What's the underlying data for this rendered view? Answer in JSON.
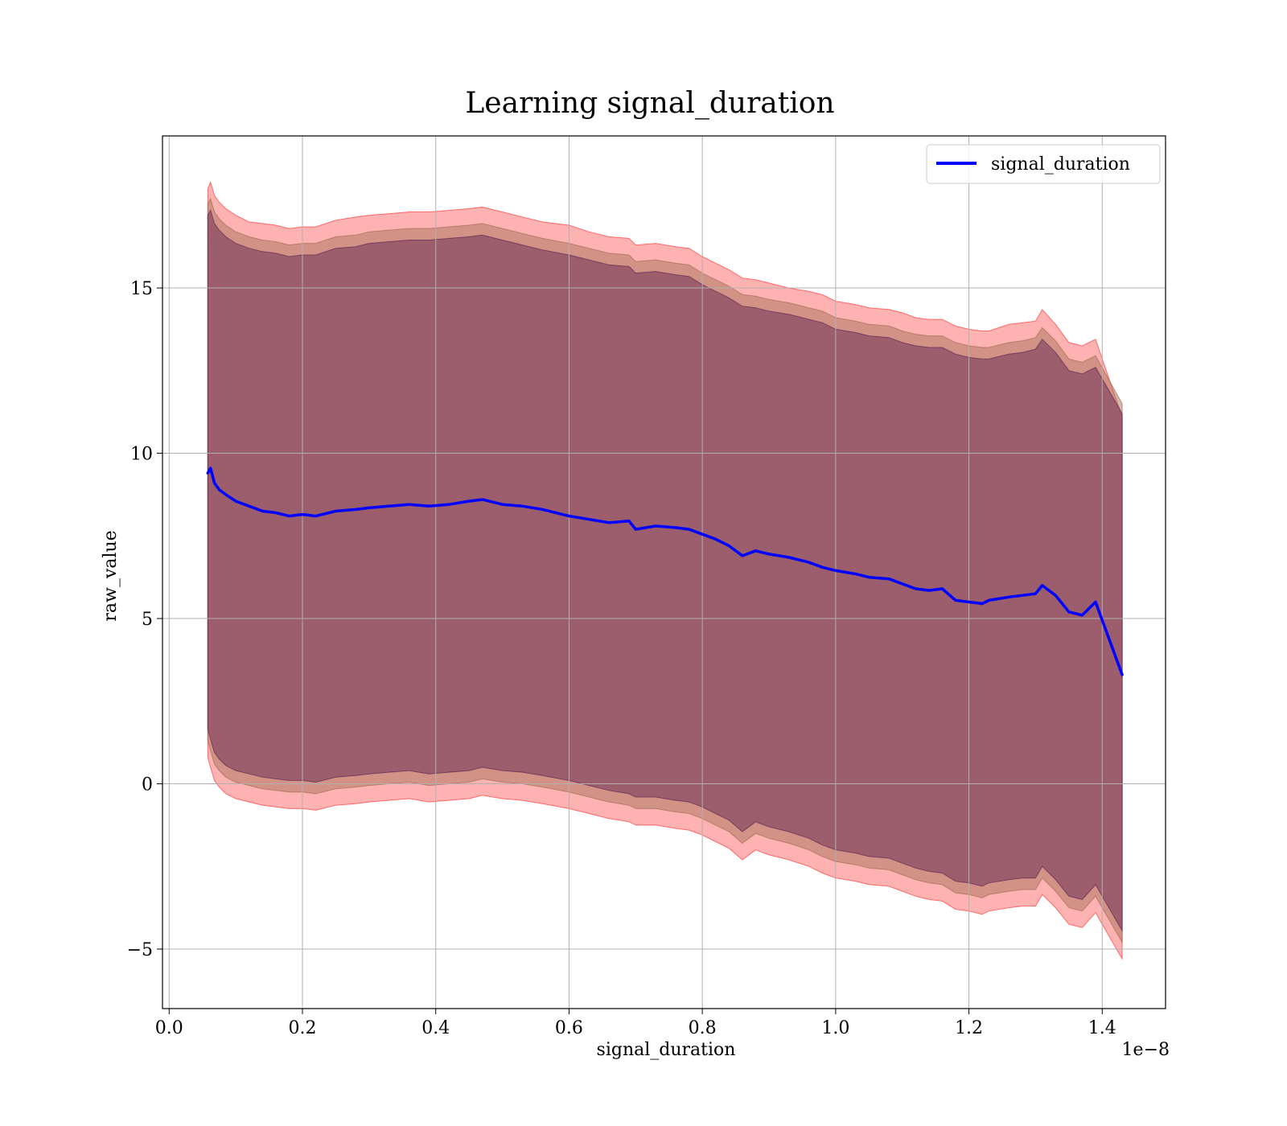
{
  "chart_data": {
    "type": "line",
    "title": "Learning signal_duration",
    "xlabel": "signal_duration",
    "ylabel": "raw_value",
    "x_offset_label": "1e−8",
    "xlim": [
      -0.01,
      1.495
    ],
    "ylim": [
      -6.8,
      19.6
    ],
    "x_ticks": [
      0.0,
      0.2,
      0.4,
      0.6,
      0.8,
      1.0,
      1.2,
      1.4
    ],
    "x_tick_labels": [
      "0.0",
      "0.2",
      "0.4",
      "0.6",
      "0.8",
      "1.0",
      "1.2",
      "1.4"
    ],
    "y_ticks": [
      -5,
      0,
      5,
      10,
      15
    ],
    "y_tick_labels": [
      "−5",
      "0",
      "5",
      "10",
      "15"
    ],
    "grid": true,
    "legend": {
      "position": "top-right",
      "entries": [
        "signal_duration"
      ]
    },
    "series": [
      {
        "name": "signal_duration",
        "color": "#0000ff",
        "x": [
          0.058,
          0.062,
          0.068,
          0.075,
          0.085,
          0.1,
          0.12,
          0.14,
          0.16,
          0.18,
          0.2,
          0.22,
          0.25,
          0.28,
          0.3,
          0.33,
          0.36,
          0.39,
          0.42,
          0.45,
          0.47,
          0.5,
          0.53,
          0.56,
          0.6,
          0.63,
          0.66,
          0.69,
          0.7,
          0.73,
          0.76,
          0.78,
          0.8,
          0.82,
          0.84,
          0.86,
          0.88,
          0.9,
          0.93,
          0.96,
          0.98,
          1.0,
          1.03,
          1.05,
          1.08,
          1.1,
          1.12,
          1.14,
          1.16,
          1.18,
          1.2,
          1.22,
          1.23,
          1.26,
          1.28,
          1.3,
          1.31,
          1.33,
          1.35,
          1.37,
          1.39,
          1.43
        ],
        "values": [
          9.4,
          9.55,
          9.1,
          8.9,
          8.75,
          8.55,
          8.4,
          8.25,
          8.2,
          8.1,
          8.15,
          8.1,
          8.25,
          8.3,
          8.35,
          8.4,
          8.45,
          8.4,
          8.45,
          8.55,
          8.6,
          8.45,
          8.4,
          8.3,
          8.1,
          8.0,
          7.9,
          7.95,
          7.7,
          7.8,
          7.75,
          7.7,
          7.55,
          7.4,
          7.2,
          6.9,
          7.05,
          6.95,
          6.85,
          6.7,
          6.55,
          6.45,
          6.35,
          6.25,
          6.2,
          6.05,
          5.9,
          5.85,
          5.9,
          5.55,
          5.5,
          5.45,
          5.55,
          5.65,
          5.7,
          5.75,
          6.0,
          5.7,
          5.2,
          5.1,
          5.5,
          3.3
        ]
      }
    ],
    "bands": [
      {
        "color": "#ff0000",
        "opacity": 0.3,
        "upper": [
          18.0,
          18.2,
          17.8,
          17.6,
          17.4,
          17.2,
          17.0,
          16.95,
          16.9,
          16.8,
          16.85,
          16.85,
          17.05,
          17.15,
          17.2,
          17.25,
          17.3,
          17.3,
          17.35,
          17.4,
          17.45,
          17.3,
          17.15,
          17.0,
          16.9,
          16.7,
          16.55,
          16.5,
          16.3,
          16.35,
          16.25,
          16.2,
          15.95,
          15.75,
          15.55,
          15.3,
          15.25,
          15.15,
          15.0,
          14.9,
          14.8,
          14.6,
          14.5,
          14.4,
          14.35,
          14.25,
          14.1,
          14.05,
          14.05,
          13.85,
          13.75,
          13.7,
          13.7,
          13.9,
          13.95,
          14.0,
          14.35,
          13.9,
          13.35,
          13.25,
          13.45,
          11.1
        ],
        "lower": [
          0.8,
          0.5,
          0.1,
          -0.1,
          -0.3,
          -0.45,
          -0.55,
          -0.65,
          -0.7,
          -0.75,
          -0.75,
          -0.8,
          -0.65,
          -0.6,
          -0.55,
          -0.5,
          -0.45,
          -0.55,
          -0.5,
          -0.45,
          -0.35,
          -0.45,
          -0.5,
          -0.6,
          -0.75,
          -0.9,
          -1.05,
          -1.15,
          -1.25,
          -1.25,
          -1.35,
          -1.4,
          -1.55,
          -1.75,
          -1.95,
          -2.3,
          -2.0,
          -2.15,
          -2.3,
          -2.5,
          -2.7,
          -2.85,
          -2.95,
          -3.05,
          -3.1,
          -3.25,
          -3.4,
          -3.5,
          -3.55,
          -3.8,
          -3.85,
          -3.95,
          -3.85,
          -3.75,
          -3.7,
          -3.7,
          -3.35,
          -3.75,
          -4.25,
          -4.35,
          -3.9,
          -5.3
        ]
      },
      {
        "color": "#9c6a50",
        "opacity": 0.45,
        "upper": [
          17.55,
          17.7,
          17.3,
          17.1,
          16.9,
          16.7,
          16.55,
          16.45,
          16.4,
          16.3,
          16.35,
          16.35,
          16.55,
          16.6,
          16.7,
          16.75,
          16.8,
          16.8,
          16.85,
          16.9,
          16.95,
          16.8,
          16.65,
          16.5,
          16.35,
          16.2,
          16.05,
          16.0,
          15.8,
          15.85,
          15.75,
          15.7,
          15.45,
          15.25,
          15.05,
          14.8,
          14.75,
          14.65,
          14.55,
          14.4,
          14.3,
          14.1,
          14.0,
          13.9,
          13.85,
          13.7,
          13.6,
          13.55,
          13.55,
          13.35,
          13.25,
          13.2,
          13.2,
          13.35,
          13.4,
          13.5,
          13.8,
          13.4,
          12.85,
          12.75,
          12.95,
          11.5
        ],
        "lower": [
          1.3,
          1.0,
          0.6,
          0.4,
          0.2,
          0.05,
          -0.05,
          -0.15,
          -0.2,
          -0.25,
          -0.25,
          -0.3,
          -0.15,
          -0.1,
          -0.05,
          0.0,
          0.05,
          -0.05,
          0.0,
          0.05,
          0.15,
          0.05,
          0.0,
          -0.1,
          -0.25,
          -0.4,
          -0.55,
          -0.65,
          -0.75,
          -0.75,
          -0.85,
          -0.9,
          -1.05,
          -1.25,
          -1.45,
          -1.8,
          -1.5,
          -1.65,
          -1.8,
          -2.0,
          -2.2,
          -2.35,
          -2.45,
          -2.55,
          -2.6,
          -2.75,
          -2.9,
          -3.0,
          -3.05,
          -3.3,
          -3.35,
          -3.45,
          -3.35,
          -3.25,
          -3.2,
          -3.2,
          -2.85,
          -3.25,
          -3.75,
          -3.85,
          -3.4,
          -4.8
        ]
      },
      {
        "color": "#5a2050",
        "opacity": 0.45,
        "upper": [
          17.2,
          17.35,
          16.95,
          16.75,
          16.55,
          16.35,
          16.2,
          16.1,
          16.05,
          15.95,
          16.0,
          16.0,
          16.2,
          16.25,
          16.35,
          16.4,
          16.45,
          16.45,
          16.5,
          16.55,
          16.6,
          16.45,
          16.3,
          16.15,
          16.0,
          15.85,
          15.7,
          15.65,
          15.45,
          15.5,
          15.4,
          15.35,
          15.1,
          14.9,
          14.7,
          14.45,
          14.4,
          14.3,
          14.2,
          14.05,
          13.95,
          13.75,
          13.65,
          13.55,
          13.5,
          13.35,
          13.25,
          13.2,
          13.2,
          13.0,
          12.9,
          12.85,
          12.85,
          13.0,
          13.05,
          13.15,
          13.45,
          13.05,
          12.5,
          12.4,
          12.6,
          11.2
        ],
        "lower": [
          1.65,
          1.35,
          0.95,
          0.75,
          0.55,
          0.4,
          0.3,
          0.2,
          0.15,
          0.1,
          0.1,
          0.05,
          0.2,
          0.25,
          0.3,
          0.35,
          0.4,
          0.3,
          0.35,
          0.4,
          0.5,
          0.4,
          0.35,
          0.25,
          0.1,
          -0.05,
          -0.2,
          -0.3,
          -0.4,
          -0.4,
          -0.5,
          -0.55,
          -0.7,
          -0.9,
          -1.1,
          -1.45,
          -1.15,
          -1.3,
          -1.45,
          -1.65,
          -1.85,
          -2.0,
          -2.1,
          -2.2,
          -2.25,
          -2.4,
          -2.55,
          -2.65,
          -2.7,
          -2.95,
          -3.0,
          -3.1,
          -3.0,
          -2.9,
          -2.85,
          -2.85,
          -2.5,
          -2.9,
          -3.4,
          -3.5,
          -3.05,
          -4.45
        ]
      }
    ]
  }
}
